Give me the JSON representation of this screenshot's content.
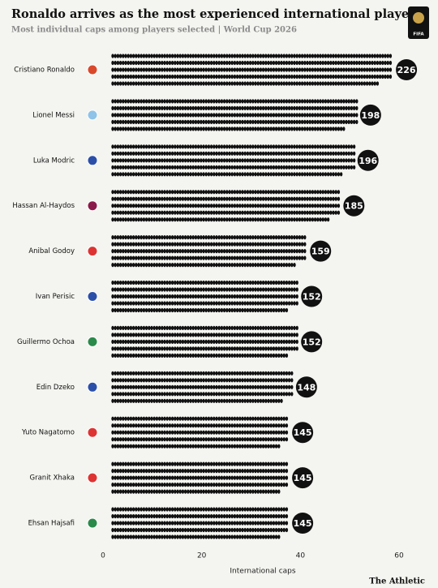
{
  "chart_data": {
    "type": "dots",
    "title": "Ronaldo arrives as the most experienced international player",
    "subtitle": "Most individual caps among players selected | World Cup 2026",
    "categories": [
      "Cristiano Ronaldo",
      "Lionel Messi",
      "Luka Modric",
      "Hassan Al-Haydos",
      "Anibal Godoy",
      "Ivan Perisic",
      "Guillermo Ochoa",
      "Edin Dzeko",
      "Yuto Nagatomo",
      "Granit Xhaka",
      "Ehsan Hajsafi"
    ],
    "values": [
      226,
      198,
      196,
      185,
      159,
      152,
      152,
      148,
      145,
      145,
      145
    ],
    "color": "#111111",
    "flag_colors": [
      "#d9482b",
      "#8fc3e8",
      "#2b4fa8",
      "#8a1a4a",
      "#d33",
      "#2b4fa8",
      "#2a8a4a",
      "#2b4fa8",
      "#d33",
      "#d33",
      "#2a8a4a"
    ],
    "x_label": "International caps",
    "xlim": [
      0,
      60
    ],
    "xticks": [
      0,
      20,
      40,
      60
    ]
  },
  "logo": "FIFA",
  "source": "The Athletic"
}
